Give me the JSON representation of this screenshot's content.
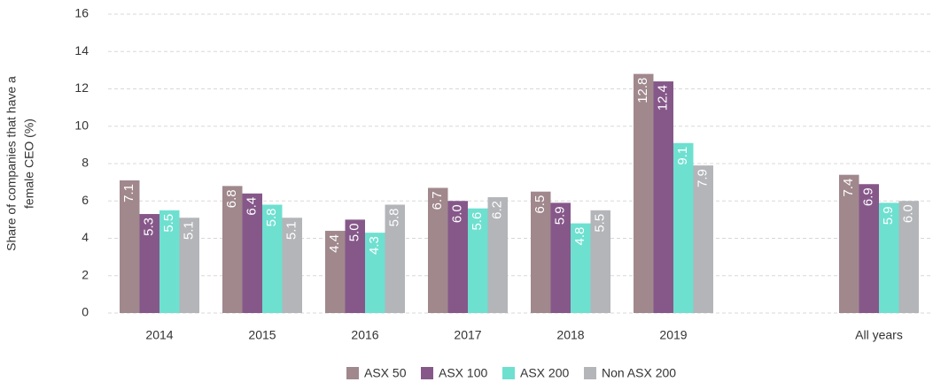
{
  "chart_data": {
    "type": "bar",
    "ylabel": [
      "Share of companies that have a",
      "female CEO (%)"
    ],
    "categories": [
      "2014",
      "2015",
      "2016",
      "2017",
      "2018",
      "2019",
      null,
      "All years"
    ],
    "series": [
      {
        "name": "ASX 50",
        "color": "#a0888d",
        "values": [
          7.1,
          6.8,
          4.4,
          6.7,
          6.5,
          12.8,
          null,
          7.4
        ],
        "value_labels": [
          "7.1",
          "6.8",
          "4.4",
          "6.7",
          "6.5",
          "12.8",
          null,
          "7.4"
        ]
      },
      {
        "name": "ASX 100",
        "color": "#86588a",
        "values": [
          5.3,
          6.4,
          5.0,
          6.0,
          5.9,
          12.4,
          null,
          6.9
        ],
        "value_labels": [
          "5.3",
          "6.4",
          "5.0",
          "6.0",
          "5.9",
          "12.4",
          null,
          "6.9"
        ]
      },
      {
        "name": "ASX 200",
        "color": "#6ee0d0",
        "values": [
          5.5,
          5.8,
          4.3,
          5.6,
          4.8,
          9.1,
          null,
          5.9
        ],
        "value_labels": [
          "5.5",
          "5.8",
          "4.3",
          "5.6",
          "4.8",
          "9.1",
          null,
          "5.9"
        ]
      },
      {
        "name": "Non ASX 200",
        "color": "#b3b5b8",
        "values": [
          5.1,
          5.1,
          5.8,
          6.2,
          5.5,
          7.9,
          null,
          6.0
        ],
        "value_labels": [
          "5.1",
          "5.1",
          "5.8",
          "6.2",
          "5.5",
          "7.9",
          null,
          "6.0"
        ]
      }
    ],
    "ylim": [
      0,
      16
    ],
    "yticks": [
      0,
      2,
      4,
      6,
      8,
      10,
      12,
      14,
      16
    ],
    "grid": true
  }
}
